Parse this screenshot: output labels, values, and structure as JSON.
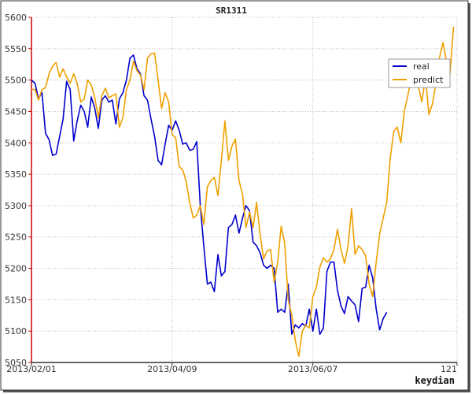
{
  "chart_data": {
    "type": "line",
    "title": "SR1311",
    "credit": "keydian",
    "xlabel": "",
    "ylabel": "",
    "ylim": [
      5050,
      5600
    ],
    "xlim": [
      0,
      121
    ],
    "y_ticks": [
      5050,
      5100,
      5150,
      5200,
      5250,
      5300,
      5350,
      5400,
      5450,
      5500,
      5550,
      5600
    ],
    "x_ticks": [
      {
        "x": 0,
        "label": "2013/02/01"
      },
      {
        "x": 40,
        "label": "2013/04/09"
      },
      {
        "x": 80,
        "label": "2013/06/07"
      },
      {
        "x": 121,
        "label": "121"
      }
    ],
    "grid": "dotted",
    "legend": "top-right",
    "series": [
      {
        "name": "real",
        "color": "#0000cc",
        "values": [
          5500,
          5495,
          5470,
          5480,
          5415,
          5405,
          5380,
          5382,
          5410,
          5438,
          5498,
          5485,
          5403,
          5435,
          5460,
          5450,
          5425,
          5473,
          5455,
          5423,
          5468,
          5475,
          5465,
          5468,
          5430,
          5470,
          5480,
          5500,
          5535,
          5540,
          5518,
          5510,
          5475,
          5468,
          5438,
          5410,
          5372,
          5365,
          5398,
          5428,
          5420,
          5435,
          5420,
          5398,
          5400,
          5388,
          5390,
          5402,
          5300,
          5235,
          5175,
          5178,
          5163,
          5222,
          5188,
          5195,
          5265,
          5270,
          5285,
          5256,
          5280,
          5300,
          5292,
          5242,
          5236,
          5225,
          5205,
          5200,
          5205,
          5200,
          5130,
          5135,
          5130,
          5175,
          5095,
          5110,
          5105,
          5112,
          5108,
          5135,
          5100,
          5135,
          5095,
          5105,
          5195,
          5210,
          5210,
          5165,
          5140,
          5128,
          5155,
          5148,
          5142,
          5115,
          5168,
          5170,
          5205,
          5185,
          5135,
          5102,
          5120,
          5130
        ]
      },
      {
        "name": "predict",
        "color": "#f0a000",
        "values": [
          5485,
          5485,
          5468,
          5485,
          5488,
          5510,
          5522,
          5528,
          5505,
          5518,
          5505,
          5495,
          5510,
          5495,
          5465,
          5470,
          5500,
          5492,
          5472,
          5440,
          5475,
          5487,
          5472,
          5475,
          5478,
          5425,
          5440,
          5485,
          5500,
          5530,
          5515,
          5508,
          5485,
          5535,
          5542,
          5543,
          5500,
          5455,
          5480,
          5465,
          5413,
          5408,
          5362,
          5357,
          5338,
          5305,
          5280,
          5285,
          5300,
          5270,
          5330,
          5340,
          5345,
          5316,
          5372,
          5435,
          5372,
          5395,
          5406,
          5340,
          5318,
          5265,
          5290,
          5265,
          5305,
          5255,
          5215,
          5228,
          5230,
          5178,
          5210,
          5267,
          5240,
          5150,
          5125,
          5085,
          5060,
          5100,
          5110,
          5105,
          5155,
          5170,
          5202,
          5217,
          5210,
          5215,
          5230,
          5262,
          5230,
          5208,
          5235,
          5295,
          5222,
          5236,
          5230,
          5220,
          5175,
          5155,
          5210,
          5255,
          5280,
          5305,
          5375,
          5418,
          5425,
          5400,
          5450,
          5475,
          5505,
          5520,
          5490,
          5465,
          5505,
          5445,
          5462,
          5495,
          5535,
          5560,
          5530,
          5510,
          5585
        ]
      }
    ]
  }
}
